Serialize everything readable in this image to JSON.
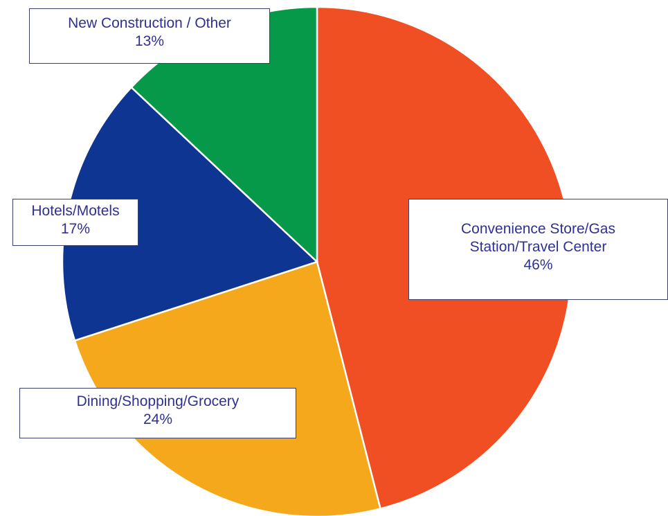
{
  "chart_data": {
    "type": "pie",
    "categories": [
      "Convenience Store/Gas Station/Travel Center",
      "Dining/Shopping/Grocery",
      "Hotels/Motels",
      "New Construction / Other"
    ],
    "values": [
      46,
      24,
      17,
      13
    ],
    "value_labels": [
      "46%",
      "24%",
      "17%",
      "13%"
    ],
    "colors": [
      "#f04e23",
      "#f5a81c",
      "#0f3592",
      "#07994a"
    ]
  }
}
